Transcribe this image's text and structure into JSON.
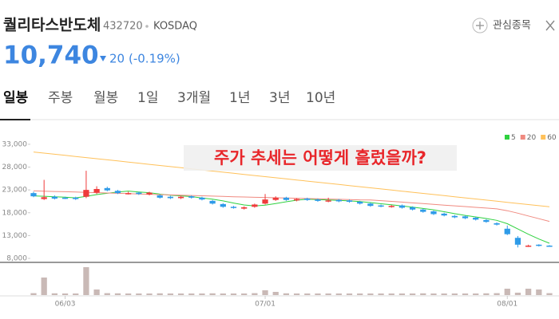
{
  "header": {
    "name": "퀄리타스반도체",
    "code": "432720",
    "market": "KOSDAQ",
    "watch_button": "관심종목",
    "price": "10,740",
    "change": "20",
    "change_pct": "(-0.19%)"
  },
  "tabs": [
    "일봉",
    "주봉",
    "월봉",
    "1일",
    "3개월",
    "1년",
    "3년",
    "10년"
  ],
  "selected_tab": 0,
  "annotation": "주가 추세는 어떻게 흘렀을까?",
  "chart_data": {
    "type": "candlestick",
    "categories": [
      null,
      null,
      null,
      "06/03",
      null,
      null,
      null,
      null,
      null,
      null,
      null,
      null,
      null,
      null,
      null,
      null,
      null,
      null,
      null,
      null,
      null,
      null,
      "07/01",
      null,
      null,
      null,
      null,
      null,
      null,
      null,
      null,
      null,
      null,
      null,
      null,
      null,
      null,
      null,
      null,
      null,
      null,
      null,
      null,
      null,
      null,
      "08/01",
      null,
      null,
      null,
      null
    ],
    "open": [
      22300,
      21000,
      21500,
      21300,
      21300,
      21500,
      22400,
      23400,
      22800,
      22200,
      22400,
      22000,
      21800,
      21500,
      21200,
      21600,
      21300,
      20600,
      19900,
      19300,
      18900,
      19300,
      20000,
      20800,
      21300,
      20700,
      21100,
      20900,
      20500,
      20800,
      20700,
      20400,
      20000,
      19600,
      19300,
      19600,
      19200,
      18700,
      18300,
      17800,
      17300,
      17200,
      16900,
      16400,
      15700,
      14500,
      12500,
      10600,
      11000,
      10800
    ],
    "high": [
      22600,
      25200,
      21800,
      21500,
      21500,
      27200,
      23800,
      23700,
      23000,
      22600,
      22600,
      22600,
      22000,
      21700,
      21700,
      21800,
      21500,
      20800,
      20100,
      19500,
      19400,
      20000,
      22100,
      21600,
      21500,
      21200,
      21300,
      21100,
      21300,
      21000,
      20900,
      20600,
      20200,
      19800,
      19700,
      19800,
      19400,
      18900,
      18500,
      18000,
      17500,
      17400,
      17100,
      16600,
      15900,
      15200,
      12900,
      11000,
      11100,
      10900
    ],
    "low": [
      21400,
      20800,
      20900,
      21000,
      20800,
      21200,
      22100,
      22700,
      22100,
      22000,
      21900,
      21800,
      21100,
      21000,
      21000,
      21100,
      20700,
      19800,
      19100,
      18900,
      18700,
      19100,
      19800,
      20600,
      20600,
      20500,
      20600,
      20400,
      20300,
      20300,
      20200,
      19800,
      19300,
      19200,
      19100,
      18900,
      18500,
      18000,
      17500,
      17200,
      16800,
      16600,
      16300,
      15800,
      15200,
      13100,
      10400,
      10500,
      10600,
      10600
    ],
    "close": [
      21600,
      21400,
      21100,
      21200,
      21000,
      23000,
      23200,
      22900,
      22300,
      22300,
      22100,
      22400,
      21300,
      21200,
      21500,
      21300,
      20900,
      20000,
      19300,
      19100,
      19200,
      19800,
      20900,
      21300,
      20800,
      21000,
      20800,
      20600,
      20700,
      20500,
      20400,
      20000,
      19500,
      19400,
      19500,
      19100,
      18700,
      18200,
      17700,
      17400,
      17000,
      16800,
      16500,
      16000,
      15400,
      13300,
      11000,
      10800,
      10760,
      10740
    ],
    "volume": [
      120000,
      1100000,
      110000,
      100000,
      100000,
      1750000,
      350000,
      120000,
      110000,
      100000,
      100000,
      100000,
      110000,
      100000,
      100000,
      100000,
      100000,
      110000,
      100000,
      100000,
      100000,
      120000,
      300000,
      200000,
      110000,
      100000,
      100000,
      100000,
      100000,
      100000,
      100000,
      100000,
      100000,
      100000,
      100000,
      100000,
      100000,
      110000,
      100000,
      100000,
      100000,
      100000,
      100000,
      110000,
      120000,
      400000,
      150000,
      400000,
      350000,
      120000
    ],
    "up_color": "#ef3b3b",
    "down_color": "#2e9be8",
    "volume_color": "#c9b9b6",
    "ylim": [
      7300,
      37000
    ],
    "yticks": [
      {
        "value": 8000,
        "label": "8,000"
      },
      {
        "value": 13000,
        "label": "13,000"
      },
      {
        "value": 18000,
        "label": "18,000"
      },
      {
        "value": 23000,
        "label": "23,000"
      },
      {
        "value": 28000,
        "label": "28,000"
      },
      {
        "value": 33000,
        "label": "33,000"
      }
    ],
    "volume_ylim": [
      0,
      1900000
    ],
    "grid": false,
    "legend": "top-right",
    "series": [
      {
        "name": "5",
        "color": "#2fd13f",
        "values": [
          21700,
          21600,
          21500,
          21400,
          21260,
          21580,
          21980,
          22260,
          22540,
          22740,
          22560,
          22400,
          22080,
          21860,
          21700,
          21540,
          21240,
          20980,
          20600,
          20120,
          19700,
          19480,
          19660,
          20020,
          20400,
          20760,
          20960,
          20900,
          20780,
          20720,
          20600,
          20440,
          20220,
          19960,
          19760,
          19500,
          19240,
          18940,
          18640,
          18220,
          17800,
          17420,
          17080,
          16740,
          16340,
          15600,
          14440,
          13300,
          12250,
          11320
        ]
      },
      {
        "name": "20",
        "color": "#f08a80",
        "values": [
          22800,
          22730,
          22660,
          22600,
          22530,
          22460,
          22390,
          22320,
          22250,
          22190,
          22120,
          22050,
          21980,
          21910,
          21840,
          21780,
          21710,
          21640,
          21570,
          21500,
          21450,
          21390,
          21340,
          21280,
          21220,
          21170,
          21110,
          21060,
          21000,
          20940,
          20890,
          20830,
          20800,
          20650,
          20490,
          20330,
          20160,
          20000,
          19840,
          19670,
          19510,
          19350,
          19180,
          19020,
          18850,
          18450,
          17900,
          17300,
          16700,
          16100
        ]
      },
      {
        "name": "60",
        "color": "#ffc15a",
        "values": [
          31300,
          31055,
          30810,
          30565,
          30320,
          30075,
          29830,
          29585,
          29340,
          29095,
          28850,
          28605,
          28360,
          28115,
          27870,
          27625,
          27380,
          27135,
          26890,
          26645,
          26400,
          26155,
          25910,
          25665,
          25420,
          25175,
          24930,
          24685,
          24440,
          24195,
          23950,
          23705,
          23460,
          23215,
          22970,
          22725,
          22480,
          22235,
          21990,
          21745,
          21500,
          21255,
          21010,
          20765,
          20520,
          20275,
          20030,
          19785,
          19540,
          19295
        ]
      }
    ]
  }
}
